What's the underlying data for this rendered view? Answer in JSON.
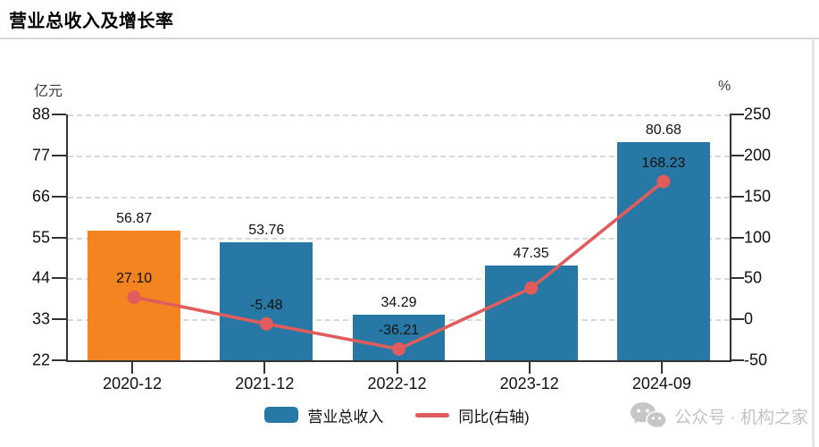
{
  "header": {
    "title": "营业总收入及增长率"
  },
  "footer": {
    "brand_text": "公众号 · 机构之家",
    "icon": "wechat-icon",
    "color": "#c3c3c3"
  },
  "colors": {
    "bar_default": "#2878a5",
    "bar_highlight": "#f28422",
    "line": "#e15c5c",
    "grid": "#d8d8d8",
    "axis": "#333333",
    "label": "#111111"
  },
  "chart_data": {
    "type": "bar+line",
    "title": "营业总收入及增长率",
    "categories": [
      "2020-12",
      "2021-12",
      "2022-12",
      "2023-12",
      "2024-09"
    ],
    "left_axis": {
      "unit": "亿元",
      "min": 22,
      "max": 88,
      "ticks": [
        22,
        33,
        44,
        55,
        66,
        77,
        88
      ]
    },
    "right_axis": {
      "unit": "%",
      "min": -50,
      "max": 250,
      "ticks": [
        -50,
        0,
        50,
        100,
        150,
        200,
        250
      ]
    },
    "grid": "dashed-horizontal",
    "series": [
      {
        "name": "营业总收入",
        "type": "bar",
        "axis": "left",
        "values": [
          56.87,
          53.76,
          34.29,
          47.35,
          80.68
        ],
        "point_labels": [
          "56.87",
          "53.76",
          "34.29",
          "47.35",
          "80.68"
        ],
        "bar_colors": [
          "#f28422",
          "#2878a5",
          "#2878a5",
          "#2878a5",
          "#2878a5"
        ]
      },
      {
        "name": "同比(右轴)",
        "type": "line",
        "axis": "right",
        "values": [
          27.1,
          -5.48,
          -36.21,
          38.09,
          168.23
        ],
        "point_labels": [
          "27.10",
          "-5.48",
          "-36.21",
          "",
          "168.23"
        ],
        "color": "#e15c5c"
      }
    ],
    "legend": [
      {
        "label": "营业总收入",
        "swatch": "bar",
        "color": "#2878a5"
      },
      {
        "label": "同比(右轴)",
        "swatch": "line",
        "color": "#e15c5c"
      }
    ],
    "legend_position": "bottom-center"
  }
}
